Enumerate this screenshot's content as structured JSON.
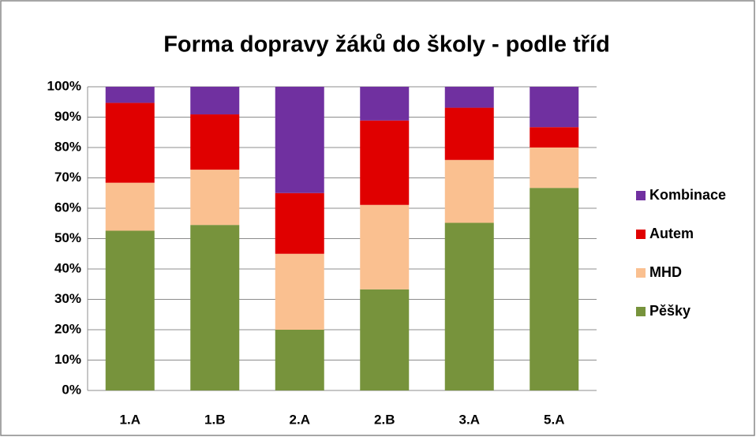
{
  "chart_data": {
    "type": "stacked_bar",
    "title": "Forma dopravy žáků do školy - podle tříd",
    "categories": [
      "1.A",
      "1.B",
      "2.A",
      "2.B",
      "3.A",
      "5.A"
    ],
    "series": [
      {
        "name": "Pěšky",
        "color": "#77933c",
        "values": [
          52.6,
          54.5,
          20,
          33.3,
          55.2,
          66.7
        ]
      },
      {
        "name": "MHD",
        "color": "#fac090",
        "values": [
          15.8,
          18.2,
          25,
          27.8,
          20.7,
          13.3
        ]
      },
      {
        "name": "Autem",
        "color": "#e00000",
        "values": [
          26.3,
          18.2,
          20,
          27.8,
          17.2,
          6.7
        ]
      },
      {
        "name": "Kombinace",
        "color": "#7030a0",
        "values": [
          5.3,
          9.1,
          35,
          11.1,
          6.9,
          13.3
        ]
      }
    ],
    "ylim": [
      0,
      100
    ],
    "yticks": [
      {
        "value": 0,
        "label": "0%"
      },
      {
        "value": 10,
        "label": "10%"
      },
      {
        "value": 20,
        "label": "20%"
      },
      {
        "value": 30,
        "label": "30%"
      },
      {
        "value": 40,
        "label": "40%"
      },
      {
        "value": 50,
        "label": "50%"
      },
      {
        "value": 60,
        "label": "60%"
      },
      {
        "value": 70,
        "label": "70%"
      },
      {
        "value": 80,
        "label": "80%"
      },
      {
        "value": 90,
        "label": "90%"
      },
      {
        "value": 100,
        "label": "100%"
      }
    ],
    "grid": true,
    "legend": "right"
  }
}
